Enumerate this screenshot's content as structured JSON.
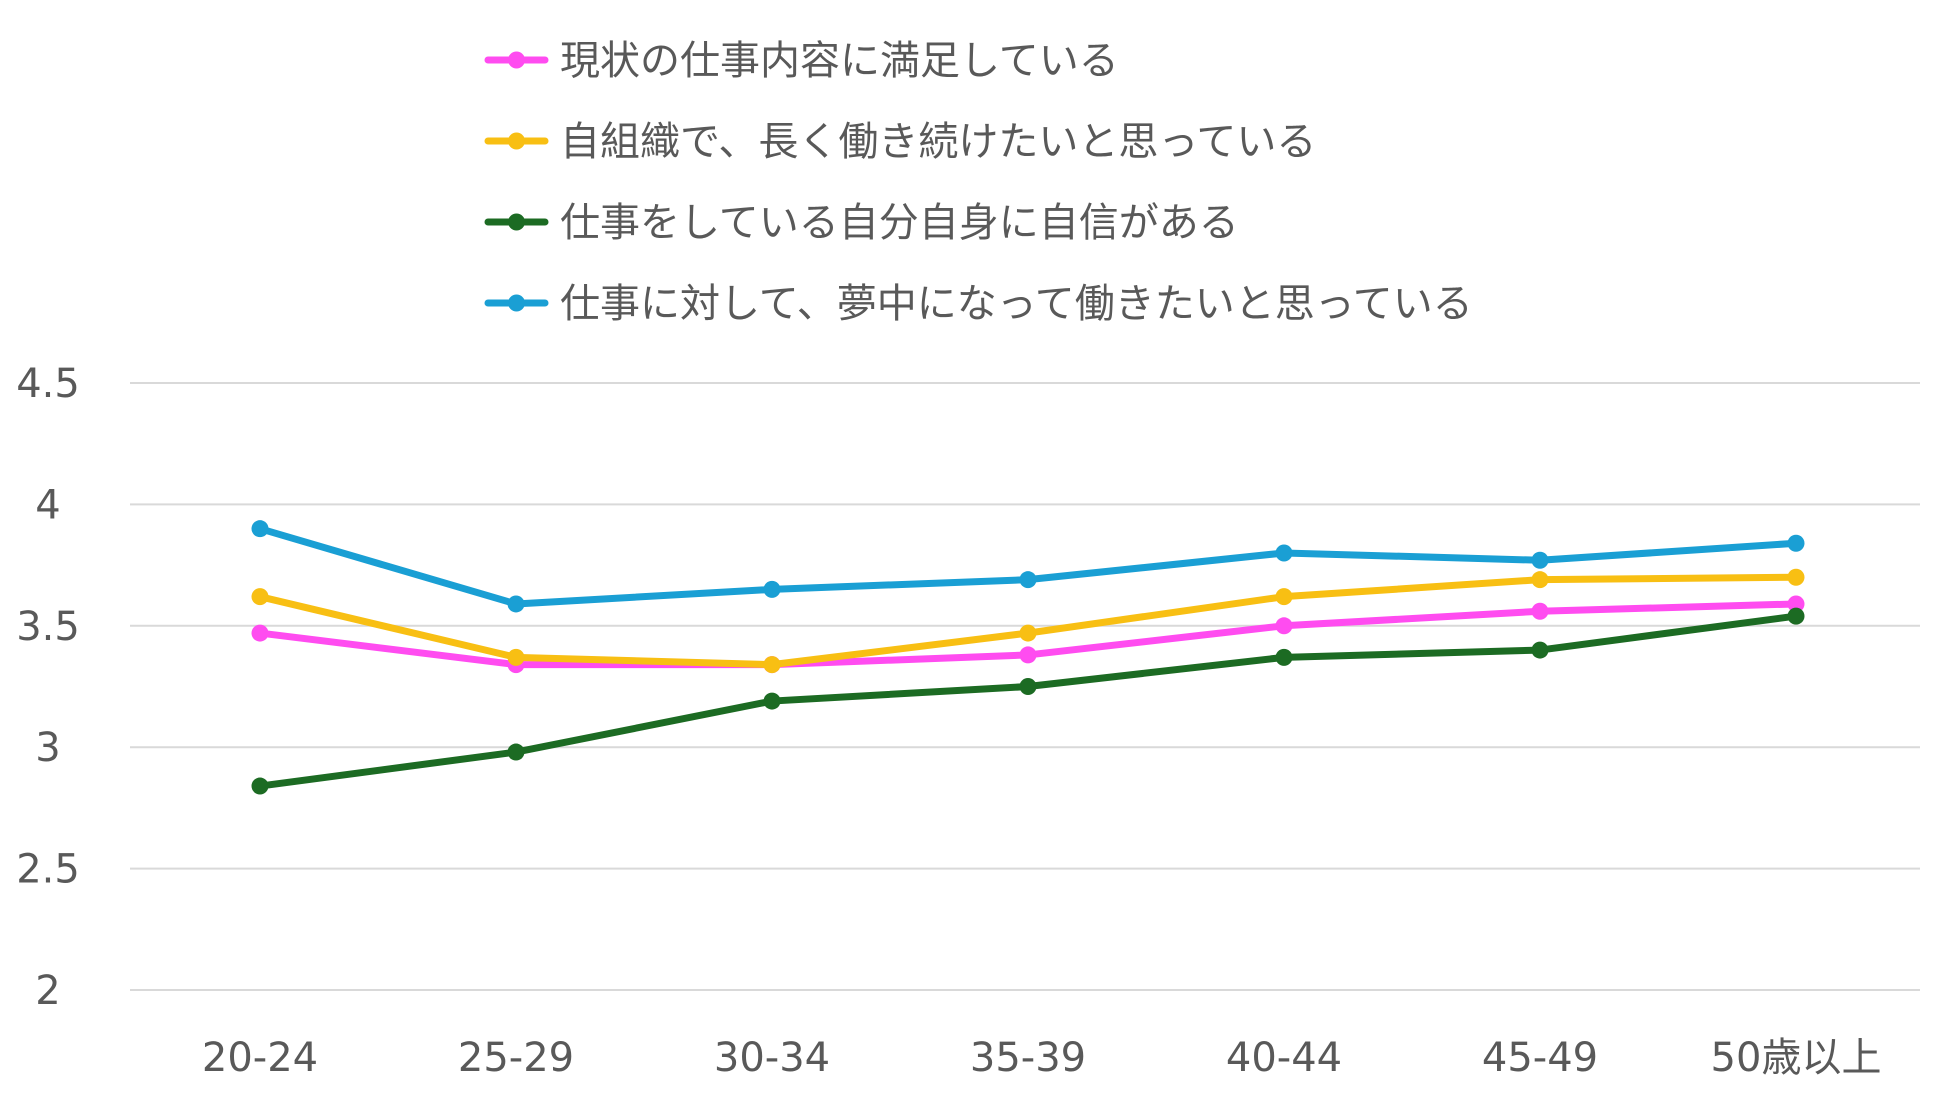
{
  "chart_data": {
    "type": "line",
    "title": "",
    "xlabel": "",
    "ylabel": "",
    "categories": [
      "20-24",
      "25-29",
      "30-34",
      "35-39",
      "40-44",
      "45-49",
      "50歳以上"
    ],
    "ylim": [
      2,
      4.5
    ],
    "yticks": [
      "2",
      "2.5",
      "3",
      "3.5",
      "4",
      "4.5"
    ],
    "grid": true,
    "legend_position": "top",
    "series": [
      {
        "name": "現状の仕事内容に満足している",
        "color": "#ff4cf0",
        "values": [
          3.47,
          3.34,
          3.34,
          3.38,
          3.5,
          3.56,
          3.59
        ]
      },
      {
        "name": "自組織で、長く働き続けたいと思っている",
        "color": "#f8bf13",
        "values": [
          3.62,
          3.37,
          3.34,
          3.47,
          3.62,
          3.69,
          3.7
        ]
      },
      {
        "name": "仕事をしている自分自身に自信がある",
        "color": "#1c6b23",
        "values": [
          2.84,
          2.98,
          3.19,
          3.25,
          3.37,
          3.4,
          3.54
        ]
      },
      {
        "name": "仕事に対して、夢中になって働きたいと思っている",
        "color": "#1a9fd4",
        "values": [
          3.9,
          3.59,
          3.65,
          3.69,
          3.8,
          3.77,
          3.84
        ]
      }
    ]
  }
}
